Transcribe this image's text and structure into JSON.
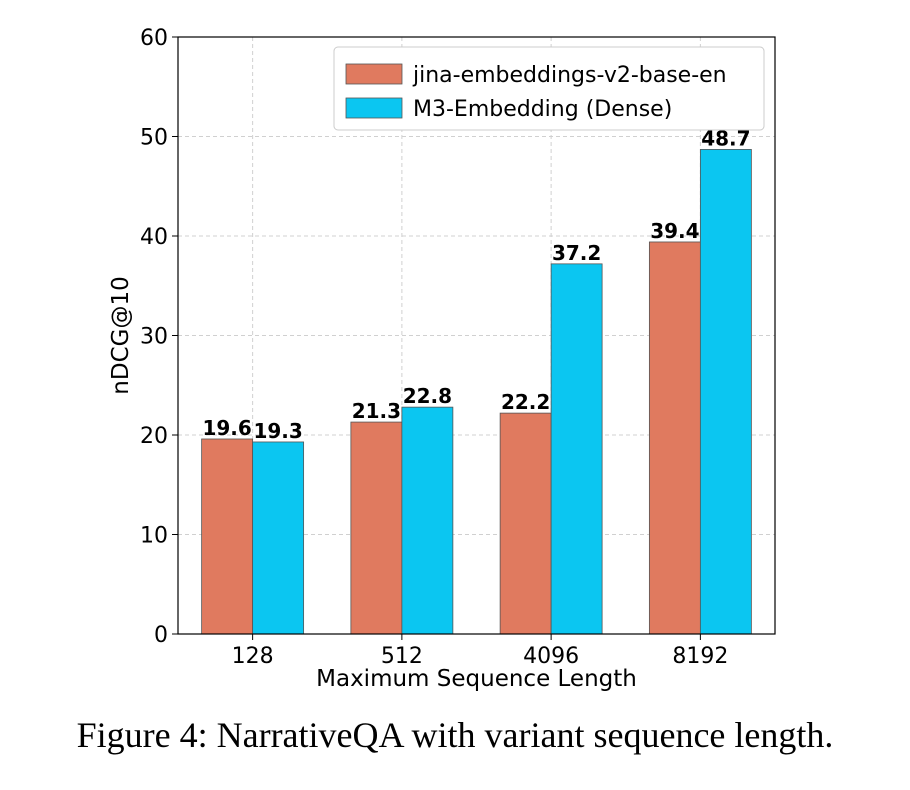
{
  "caption": "Figure 4: NarrativeQA with variant sequence length.",
  "chart_data": {
    "type": "bar",
    "categories": [
      "128",
      "512",
      "4096",
      "8192"
    ],
    "series": [
      {
        "name": "jina-embeddings-v2-base-en",
        "values": [
          19.6,
          21.3,
          22.2,
          39.4
        ],
        "labels": [
          "19.6",
          "21.3",
          "22.2",
          "39.4"
        ],
        "color": "#e07a5f"
      },
      {
        "name": "M3-Embedding (Dense)",
        "values": [
          19.3,
          22.8,
          37.2,
          48.7
        ],
        "labels": [
          "19.3",
          "22.8",
          "37.2",
          "48.7"
        ],
        "color": "#0bc6f1"
      }
    ],
    "xlabel": "Maximum Sequence Length",
    "ylabel": "nDCG@10",
    "ylim": [
      0,
      60
    ],
    "yticks": [
      "0",
      "10",
      "20",
      "30",
      "40",
      "50",
      "60"
    ],
    "grid": true,
    "legend_position": "top-right"
  }
}
